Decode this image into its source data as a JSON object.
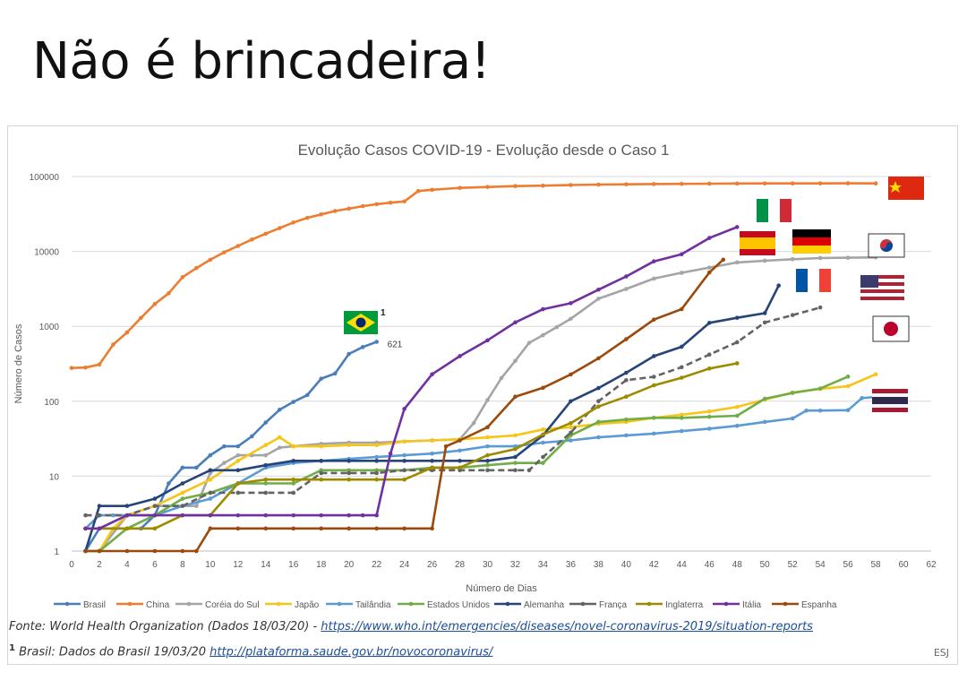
{
  "headline": "Não é brincadeira!",
  "footer": {
    "source_prefix": "Fonte: World Health Organization (Dados 18/03/20) - ",
    "source_link": "https://www.who.int/emergencies/diseases/novel-coronavirus-2019/situation-reports",
    "brasil_note_mark": "1",
    "brasil_note_prefix": "Brasil: Dados do Brasil 19/03/20 ",
    "brasil_note_link": "http://plataforma.saude.gov.br/novocoronavirus/",
    "credit": "ESJ"
  },
  "colors": {
    "Brasil": "#4a7ebb",
    "China": "#ed7d31",
    "Coréia do Sul": "#a5a5a5",
    "Japão": "#f5c518",
    "Tailândia": "#5b9bd5",
    "Estados Unidos": "#70ad47",
    "Alemanha": "#264478",
    "França": "#636363",
    "Inglaterra": "#9e8a00",
    "Itália": "#7030a0",
    "Espanha": "#9c4a0c"
  },
  "chart_data": {
    "type": "line",
    "title": "Evolução Casos COVID-19 - Evolução desde o Caso 1",
    "xlabel": "Número de Dias",
    "ylabel": "Número de Casos",
    "xlim": [
      0,
      62
    ],
    "ylim": [
      1,
      100000
    ],
    "yscale": "log",
    "x_ticks": [
      0,
      2,
      4,
      6,
      8,
      10,
      12,
      14,
      16,
      18,
      20,
      22,
      24,
      26,
      28,
      30,
      32,
      34,
      36,
      38,
      40,
      42,
      44,
      46,
      48,
      50,
      52,
      54,
      56,
      58,
      60,
      62
    ],
    "y_ticks": [
      1,
      10,
      100,
      1000,
      10000,
      100000
    ],
    "y_tick_labels": [
      "1",
      "10",
      "100",
      "1000",
      "10000",
      "100000"
    ],
    "grid": "horizontal",
    "legend": "bottom",
    "annotations": [
      {
        "text": "621",
        "series": "Brasil"
      },
      {
        "text": "1",
        "series": "Brasil",
        "kind": "footnote"
      }
    ],
    "series": [
      {
        "name": "Brasil",
        "x": [
          1,
          2,
          3,
          4,
          5,
          6,
          7,
          8,
          9,
          10,
          11,
          12,
          13,
          14,
          15,
          16,
          17,
          18,
          19,
          20,
          21,
          22
        ],
        "y": [
          1,
          2,
          2,
          2,
          2,
          3,
          8,
          13,
          13,
          19,
          25,
          25,
          34,
          52,
          77,
          98,
          121,
          200,
          234,
          428,
          529,
          621
        ]
      },
      {
        "name": "China",
        "x": [
          0,
          1,
          2,
          3,
          4,
          5,
          6,
          7,
          8,
          9,
          10,
          11,
          12,
          13,
          14,
          15,
          16,
          17,
          18,
          19,
          20,
          21,
          22,
          23,
          24,
          25,
          26,
          28,
          30,
          32,
          34,
          36,
          38,
          40,
          42,
          44,
          46,
          48,
          50,
          52,
          54,
          56,
          58
        ],
        "y": [
          278,
          282,
          309,
          571,
          830,
          1297,
          1985,
          2761,
          4537,
          5997,
          7736,
          9720,
          11821,
          14411,
          17238,
          20471,
          24363,
          28060,
          31211,
          34598,
          37251,
          40235,
          42708,
          44730,
          46550,
          64000,
          66500,
          70500,
          72500,
          74500,
          75500,
          77000,
          78000,
          78800,
          79300,
          79800,
          80300,
          80600,
          80800,
          80900,
          81000,
          81100,
          80900
        ]
      },
      {
        "name": "Coréia do Sul",
        "x": [
          1,
          2,
          4,
          6,
          8,
          9,
          10,
          11,
          12,
          13,
          14,
          15,
          16,
          18,
          20,
          22,
          24,
          26,
          28,
          29,
          30,
          31,
          32,
          33,
          34,
          35,
          36,
          38,
          40,
          42,
          44,
          46,
          48,
          50,
          52,
          54,
          56,
          58
        ],
        "y": [
          1,
          1,
          3,
          4,
          4,
          4,
          11,
          15,
          19,
          19,
          19,
          24,
          25,
          27,
          28,
          28,
          29,
          30,
          31,
          51,
          104,
          204,
          346,
          602,
          763,
          977,
          1261,
          2337,
          3150,
          4335,
          5186,
          6088,
          7134,
          7513,
          7869,
          8162,
          8236,
          8320
        ]
      },
      {
        "name": "Japão",
        "x": [
          1,
          2,
          3,
          4,
          6,
          8,
          10,
          12,
          14,
          15,
          16,
          18,
          20,
          22,
          24,
          26,
          28,
          30,
          32,
          34,
          36,
          38,
          40,
          42,
          44,
          46,
          48,
          50,
          52,
          54,
          56,
          58
        ],
        "y": [
          1,
          1,
          2,
          3,
          4,
          6,
          9,
          16,
          26,
          33,
          25,
          25,
          26,
          26,
          29,
          30,
          31,
          33,
          35,
          42,
          45,
          50,
          53,
          60,
          66,
          73,
          84,
          105,
          131,
          146,
          159,
          229
        ]
      },
      {
        "name": "Tailândia",
        "x": [
          1,
          2,
          3,
          4,
          6,
          8,
          10,
          12,
          14,
          16,
          18,
          20,
          22,
          24,
          26,
          28,
          30,
          32,
          34,
          36,
          38,
          40,
          42,
          44,
          46,
          48,
          50,
          52,
          53,
          54,
          56,
          57,
          58
        ],
        "y": [
          2,
          3,
          3,
          3,
          3,
          4,
          5,
          8,
          13,
          15,
          16,
          17,
          18,
          19,
          20,
          22,
          25,
          25,
          28,
          30,
          33,
          35,
          37,
          40,
          43,
          47,
          53,
          59,
          75,
          75,
          76,
          110,
          114
        ]
      },
      {
        "name": "Estados Unidos",
        "x": [
          1,
          2,
          4,
          6,
          8,
          10,
          12,
          14,
          16,
          18,
          20,
          22,
          24,
          26,
          28,
          30,
          32,
          34,
          36,
          38,
          40,
          42,
          44,
          46,
          48,
          50,
          52,
          54,
          56
        ],
        "y": [
          1,
          1,
          2,
          3,
          5,
          6,
          8,
          8,
          8,
          12,
          12,
          12,
          12,
          13,
          13,
          14,
          15,
          15,
          35,
          53,
          57,
          60,
          60,
          62,
          64,
          108,
          129,
          148,
          213
        ]
      },
      {
        "name": "Alemanha",
        "x": [
          1,
          2,
          4,
          6,
          8,
          10,
          12,
          14,
          16,
          18,
          20,
          22,
          24,
          26,
          28,
          30,
          32,
          34,
          36,
          38,
          40,
          42,
          44,
          46,
          48,
          50,
          51
        ],
        "y": [
          1,
          4,
          4,
          5,
          8,
          12,
          12,
          14,
          16,
          16,
          16,
          16,
          16,
          16,
          16,
          16,
          18,
          35,
          100,
          150,
          240,
          400,
          534,
          1112,
          1300,
          1500,
          3500
        ]
      },
      {
        "name": "França",
        "x": [
          1,
          2,
          4,
          6,
          8,
          10,
          12,
          14,
          16,
          18,
          20,
          22,
          24,
          26,
          28,
          30,
          32,
          33,
          34,
          36,
          38,
          40,
          42,
          44,
          46,
          48,
          50,
          52,
          54
        ],
        "y": [
          3,
          3,
          3,
          4,
          4,
          6,
          6,
          6,
          6,
          11,
          11,
          11,
          12,
          12,
          12,
          12,
          12,
          12,
          18,
          38,
          100,
          191,
          212,
          285,
          420,
          613,
          1126,
          1412,
          1784
        ]
      },
      {
        "name": "Inglaterra",
        "x": [
          1,
          2,
          4,
          6,
          8,
          10,
          12,
          14,
          16,
          18,
          20,
          22,
          24,
          26,
          28,
          30,
          32,
          34,
          36,
          38,
          40,
          42,
          44,
          46,
          48
        ],
        "y": [
          2,
          2,
          2,
          2,
          3,
          3,
          8,
          9,
          9,
          9,
          9,
          9,
          9,
          13,
          13,
          19,
          23,
          36,
          51,
          85,
          115,
          163,
          206,
          273,
          321
        ]
      },
      {
        "name": "Itália",
        "x": [
          1,
          2,
          4,
          6,
          8,
          10,
          12,
          14,
          16,
          18,
          20,
          21,
          22,
          23,
          24,
          26,
          28,
          30,
          32,
          34,
          36,
          38,
          40,
          42,
          44,
          46,
          48
        ],
        "y": [
          2,
          2,
          3,
          3,
          3,
          3,
          3,
          3,
          3,
          3,
          3,
          3,
          3,
          20,
          79,
          229,
          400,
          650,
          1128,
          1694,
          2036,
          3089,
          4636,
          7375,
          9172,
          15113,
          21157
        ]
      },
      {
        "name": "Espanha",
        "x": [
          1,
          2,
          4,
          6,
          8,
          9,
          10,
          12,
          14,
          16,
          18,
          20,
          22,
          24,
          26,
          27,
          28,
          30,
          32,
          34,
          36,
          38,
          40,
          42,
          44,
          46,
          47
        ],
        "y": [
          1,
          1,
          1,
          1,
          1,
          1,
          2,
          2,
          2,
          2,
          2,
          2,
          2,
          2,
          2,
          25,
          30,
          45,
          115,
          151,
          228,
          374,
          674,
          1231,
          1695,
          5232,
          7753
        ]
      }
    ],
    "end_labels": {
      "Brasil": "621"
    }
  }
}
